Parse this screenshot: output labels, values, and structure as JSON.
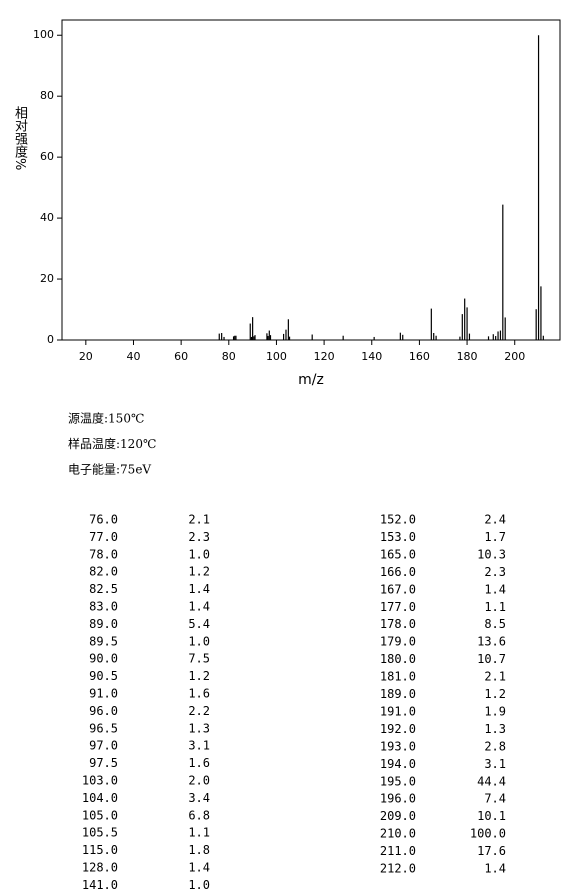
{
  "chart_data": {
    "type": "stem",
    "xlabel": "m/z",
    "ylabel": "相对强度%",
    "x": [
      76,
      77,
      78,
      82,
      82.5,
      83,
      89,
      89.5,
      90,
      90.5,
      91,
      96,
      96.5,
      97,
      97.5,
      103,
      104,
      105,
      105.5,
      115,
      128,
      141,
      152,
      153,
      165,
      166,
      167,
      177,
      178,
      179,
      180,
      181,
      189,
      191,
      192,
      193,
      194,
      195,
      196,
      209,
      210,
      211,
      212
    ],
    "values": [
      2.1,
      2.3,
      1.0,
      1.2,
      1.4,
      1.4,
      5.4,
      1.0,
      7.5,
      1.2,
      1.6,
      2.2,
      1.3,
      3.1,
      1.6,
      2.0,
      3.4,
      6.8,
      1.1,
      1.8,
      1.4,
      1.0,
      2.4,
      1.7,
      10.3,
      2.3,
      1.4,
      1.1,
      8.5,
      13.6,
      10.7,
      2.1,
      1.2,
      1.9,
      1.3,
      2.8,
      3.1,
      44.4,
      7.4,
      10.1,
      100.0,
      17.6,
      1.4
    ],
    "color": "#000000",
    "xlim": [
      10,
      219
    ],
    "xticks": [
      20,
      40,
      60,
      80,
      100,
      120,
      140,
      160,
      180,
      200
    ],
    "ylim": [
      0,
      105
    ],
    "yticks": [
      0,
      20,
      40,
      60,
      80,
      100
    ]
  },
  "info": [
    "源温度:150℃",
    "样品温度:120℃",
    "电子能量:75eV"
  ],
  "table": {
    "left": [
      [
        "76.0",
        "2.1"
      ],
      [
        "77.0",
        "2.3"
      ],
      [
        "78.0",
        "1.0"
      ],
      [
        "82.0",
        "1.2"
      ],
      [
        "82.5",
        "1.4"
      ],
      [
        "83.0",
        "1.4"
      ],
      [
        "89.0",
        "5.4"
      ],
      [
        "89.5",
        "1.0"
      ],
      [
        "90.0",
        "7.5"
      ],
      [
        "90.5",
        "1.2"
      ],
      [
        "91.0",
        "1.6"
      ],
      [
        "96.0",
        "2.2"
      ],
      [
        "96.5",
        "1.3"
      ],
      [
        "97.0",
        "3.1"
      ],
      [
        "97.5",
        "1.6"
      ],
      [
        "103.0",
        "2.0"
      ],
      [
        "104.0",
        "3.4"
      ],
      [
        "105.0",
        "6.8"
      ],
      [
        "105.5",
        "1.1"
      ],
      [
        "115.0",
        "1.8"
      ],
      [
        "128.0",
        "1.4"
      ],
      [
        "141.0",
        "1.0"
      ]
    ],
    "right": [
      [
        "152.0",
        "2.4"
      ],
      [
        "153.0",
        "1.7"
      ],
      [
        "165.0",
        "10.3"
      ],
      [
        "166.0",
        "2.3"
      ],
      [
        "167.0",
        "1.4"
      ],
      [
        "177.0",
        "1.1"
      ],
      [
        "178.0",
        "8.5"
      ],
      [
        "179.0",
        "13.6"
      ],
      [
        "180.0",
        "10.7"
      ],
      [
        "181.0",
        "2.1"
      ],
      [
        "189.0",
        "1.2"
      ],
      [
        "191.0",
        "1.9"
      ],
      [
        "192.0",
        "1.3"
      ],
      [
        "193.0",
        "2.8"
      ],
      [
        "194.0",
        "3.1"
      ],
      [
        "195.0",
        "44.4"
      ],
      [
        "196.0",
        "7.4"
      ],
      [
        "209.0",
        "10.1"
      ],
      [
        "210.0",
        "100.0"
      ],
      [
        "211.0",
        "17.6"
      ],
      [
        "212.0",
        "1.4"
      ]
    ]
  }
}
